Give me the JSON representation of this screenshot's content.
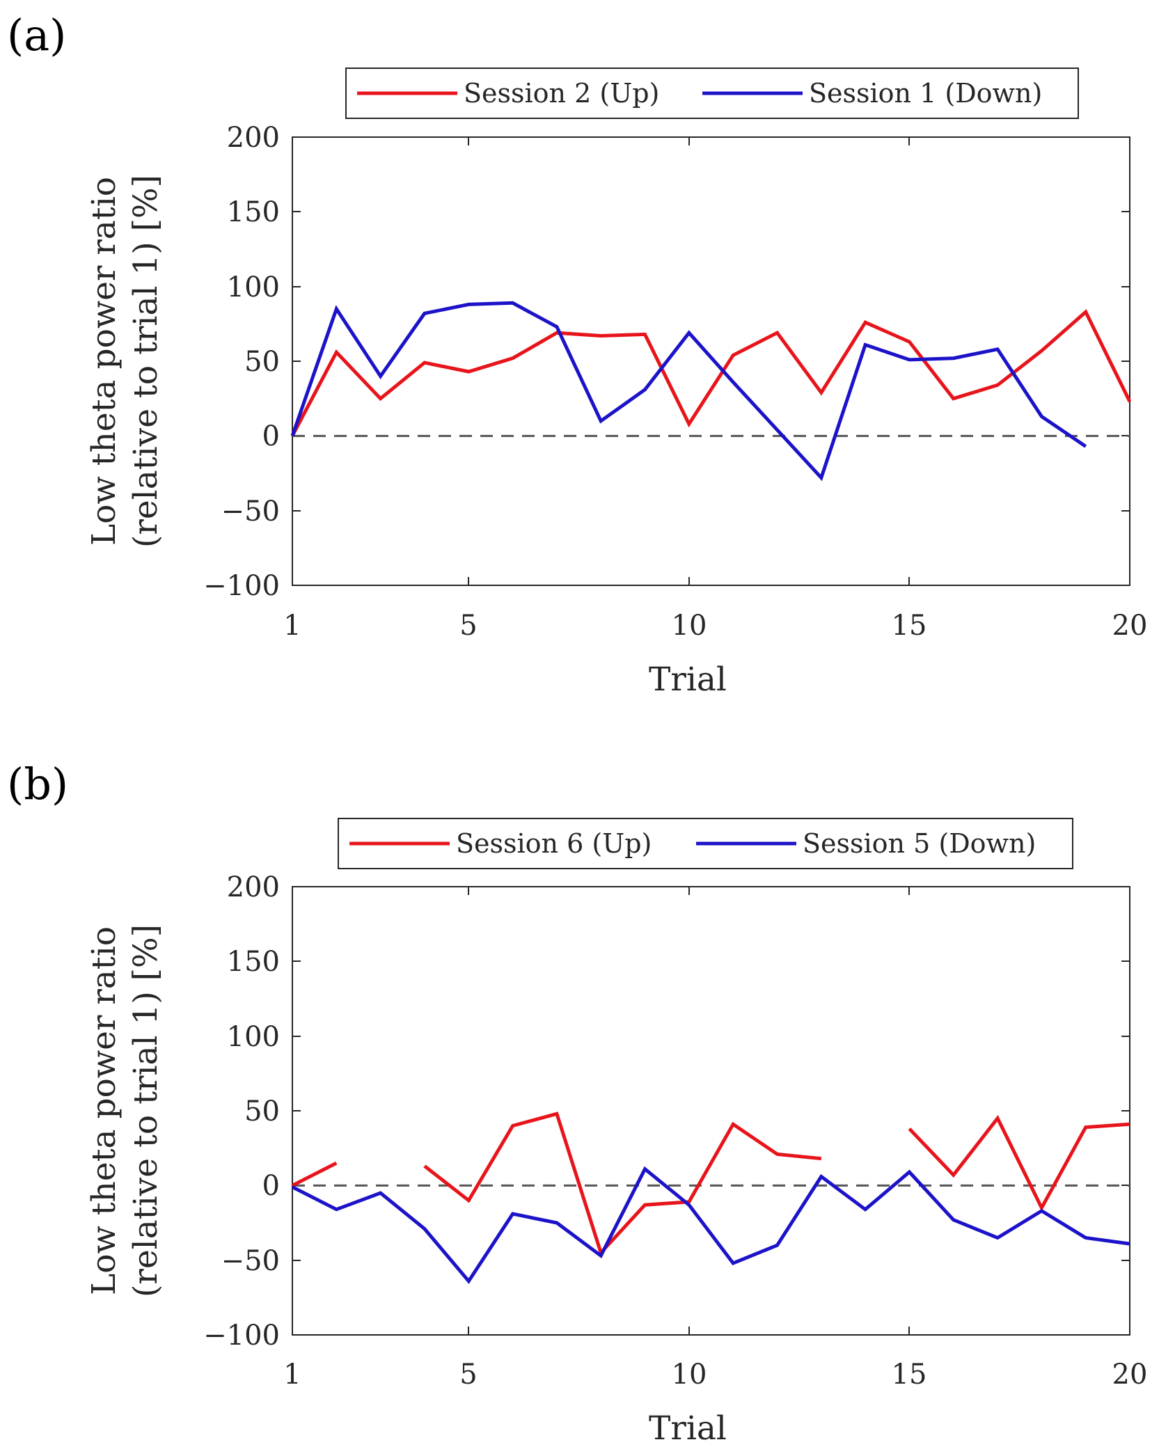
{
  "chart_data": [
    {
      "type": "line",
      "panel_label": "(a)",
      "title": "",
      "xlabel": "Trial",
      "ylabel_line1": "Low theta power ratio",
      "ylabel_line2": "(relative to trial 1) [%]",
      "xlim": [
        1,
        20
      ],
      "ylim": [
        -100,
        200
      ],
      "xticks": [
        1,
        5,
        10,
        15,
        20
      ],
      "xtick_labels": [
        "1",
        "5",
        "10",
        "15",
        "20"
      ],
      "yticks": [
        200,
        150,
        100,
        50,
        0,
        -50,
        -100
      ],
      "ytick_labels": [
        "200",
        "150",
        "100",
        "50",
        "0",
        "−50",
        "−100"
      ],
      "grid": false,
      "legend_position": "top-center",
      "reference_line": {
        "y": 0,
        "style": "dashed",
        "color": "#555555"
      },
      "x": [
        1,
        2,
        3,
        4,
        5,
        6,
        7,
        8,
        9,
        10,
        11,
        12,
        13,
        14,
        15,
        16,
        17,
        18,
        19,
        20
      ],
      "series": [
        {
          "name": "Session 2 (Up)",
          "color": "#e8141b",
          "values": [
            0,
            56,
            25,
            49,
            43,
            52,
            69,
            67,
            68,
            8,
            54,
            69,
            29,
            76,
            63,
            25,
            34,
            57,
            83,
            23
          ]
        },
        {
          "name": "Session 1 (Down)",
          "color": "#1c13c9",
          "values": [
            0,
            85,
            40,
            82,
            88,
            89,
            73,
            10,
            31,
            69,
            36,
            4,
            -28,
            61,
            51,
            52,
            58,
            13,
            -7,
            null
          ]
        }
      ]
    },
    {
      "type": "line",
      "panel_label": "(b)",
      "title": "",
      "xlabel": "Trial",
      "ylabel_line1": "Low theta power ratio",
      "ylabel_line2": "(relative to trial 1) [%]",
      "xlim": [
        1,
        20
      ],
      "ylim": [
        -100,
        200
      ],
      "xticks": [
        1,
        5,
        10,
        15,
        20
      ],
      "xtick_labels": [
        "1",
        "5",
        "10",
        "15",
        "20"
      ],
      "yticks": [
        200,
        150,
        100,
        50,
        0,
        -50,
        -100
      ],
      "ytick_labels": [
        "200",
        "150",
        "100",
        "50",
        "0",
        "−50",
        "−100"
      ],
      "grid": false,
      "legend_position": "top-center",
      "reference_line": {
        "y": 0,
        "style": "dashed",
        "color": "#555555"
      },
      "x": [
        1,
        2,
        3,
        4,
        5,
        6,
        7,
        8,
        9,
        10,
        11,
        12,
        13,
        14,
        15,
        16,
        17,
        18,
        19,
        20
      ],
      "series": [
        {
          "name": "Session 6 (Up)",
          "color": "#e8141b",
          "values": [
            0,
            15,
            null,
            13,
            -10,
            40,
            48,
            -45,
            -13,
            -11,
            41,
            21,
            18,
            null,
            38,
            7,
            45,
            -15,
            39,
            41
          ]
        },
        {
          "name": "Session 5 (Down)",
          "color": "#1c13c9",
          "values": [
            -1,
            -16,
            -5,
            -29,
            -64,
            -19,
            -25,
            -47,
            11,
            -13,
            -52,
            -40,
            6,
            -16,
            9,
            -23,
            -35,
            -17,
            -35,
            -39
          ]
        }
      ]
    }
  ]
}
